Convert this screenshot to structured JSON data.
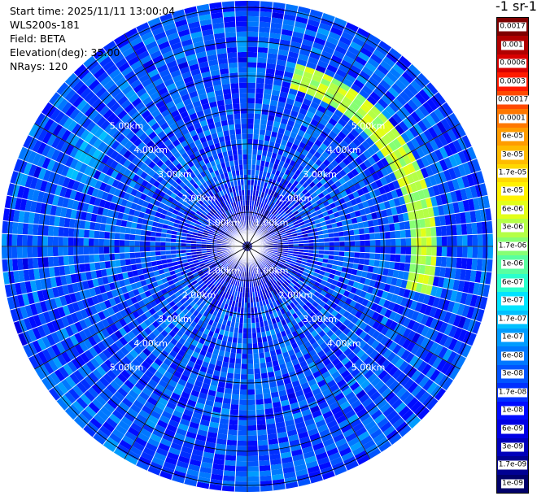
{
  "info": {
    "start_time": "Start time: 2025/11/11 13:00:04",
    "instrument": "WLS200s-181",
    "field": "Field: BETA",
    "elevation": "Elevation(deg): 35.00",
    "nrays": "NRays: 120"
  },
  "colorbar": {
    "title": "-1 sr-1",
    "ticks": [
      "0.0017",
      "0.001",
      "0.0006",
      "0.0003",
      "0.00017",
      "0.0001",
      "6e-05",
      "3e-05",
      "1.7e-05",
      "1e-05",
      "6e-06",
      "3e-06",
      "1.7e-06",
      "1e-06",
      "6e-07",
      "3e-07",
      "1.7e-07",
      "1e-07",
      "6e-08",
      "3e-08",
      "1.7e-08",
      "1e-08",
      "6e-09",
      "3e-09",
      "1.7e-09",
      "1e-09"
    ],
    "colors": [
      "#7f0000",
      "#b00000",
      "#d80000",
      "#ff1a00",
      "#ff4a00",
      "#ff7800",
      "#ff9c00",
      "#ffbb00",
      "#ffd800",
      "#fff200",
      "#e2ff18",
      "#b4ff46",
      "#86ff73",
      "#58ffa0",
      "#2affcc",
      "#00e4ff",
      "#00c0ff",
      "#009cff",
      "#0078ff",
      "#0054ff",
      "#0030ff",
      "#000cff",
      "#0000e4",
      "#0000bb",
      "#000092",
      "#00006a"
    ]
  },
  "chart_data": {
    "type": "heatmap",
    "projection": "polar PPI scan",
    "title": "",
    "field": "BETA",
    "elevation_deg": 35.0,
    "n_rays": 120,
    "range_unit": "km",
    "range_rings": [
      1.0,
      2.0,
      3.0,
      4.0,
      5.0
    ],
    "ring_labels": [
      "1.00km",
      "2.00km",
      "3.00km",
      "4.00km",
      "5.00km"
    ],
    "radial_lines_deg": [
      0,
      30,
      60,
      90,
      120,
      150,
      180,
      210,
      240,
      270,
      300,
      330
    ],
    "value_scale": "log",
    "value_range": [
      1e-09,
      0.0017
    ],
    "dominant_value": 3e-08,
    "features": [
      {
        "azimuth_from_deg": 15,
        "azimuth_to_deg": 105,
        "range_km": 5.2,
        "value": 3e-06
      },
      {
        "azimuth_from_deg": 290,
        "azimuth_to_deg": 310,
        "range_km": 5.3,
        "value": 1e-07
      }
    ]
  }
}
